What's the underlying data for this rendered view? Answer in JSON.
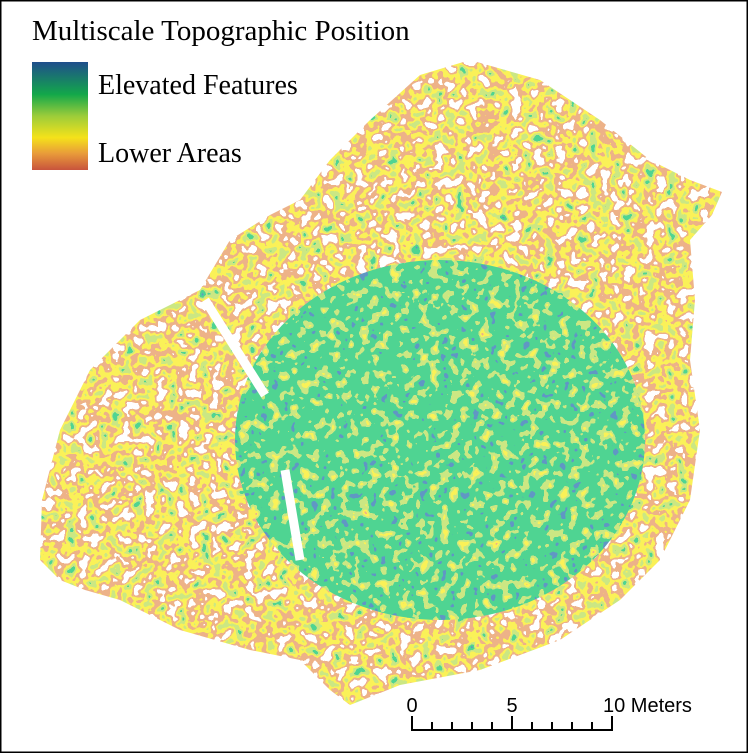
{
  "title": "Multiscale Topographic Position",
  "legend": {
    "items": [
      "Elevated Features",
      "Lower Areas"
    ]
  },
  "scale_bar": {
    "labels": [
      "0",
      "5",
      "10 Meters"
    ]
  }
}
